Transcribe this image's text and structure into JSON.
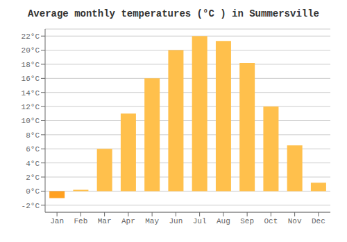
{
  "chart_data": {
    "type": "bar",
    "title": "Average monthly temperatures (°C ) in Summersville",
    "categories": [
      "Jan",
      "Feb",
      "Mar",
      "Apr",
      "May",
      "Jun",
      "Jul",
      "Aug",
      "Sep",
      "Oct",
      "Nov",
      "Dec"
    ],
    "values": [
      -1.0,
      0.2,
      6.0,
      11.0,
      16.0,
      20.0,
      22.0,
      21.3,
      18.2,
      12.0,
      6.5,
      1.2
    ],
    "colors": [
      "#FFA020",
      "#FFC04C",
      "#FFC04C",
      "#FFC04C",
      "#FFC04C",
      "#FFC04C",
      "#FFC04C",
      "#FFC04C",
      "#FFC04C",
      "#FFC04C",
      "#FFC04C",
      "#FFC04C"
    ],
    "ylim": [
      -3,
      23
    ],
    "yticks": [
      {
        "value": -2,
        "label": "-2°C"
      },
      {
        "value": 0,
        "label": "0°C"
      },
      {
        "value": 2,
        "label": "2°C"
      },
      {
        "value": 4,
        "label": "4°C"
      },
      {
        "value": 6,
        "label": "6°C"
      },
      {
        "value": 8,
        "label": "8°C"
      },
      {
        "value": 10,
        "label": "10°C"
      },
      {
        "value": 12,
        "label": "12°C"
      },
      {
        "value": 14,
        "label": "14°C"
      },
      {
        "value": 16,
        "label": "16°C"
      },
      {
        "value": 18,
        "label": "18°C"
      },
      {
        "value": 20,
        "label": "20°C"
      },
      {
        "value": 22,
        "label": "22°C"
      }
    ],
    "grid": true
  }
}
